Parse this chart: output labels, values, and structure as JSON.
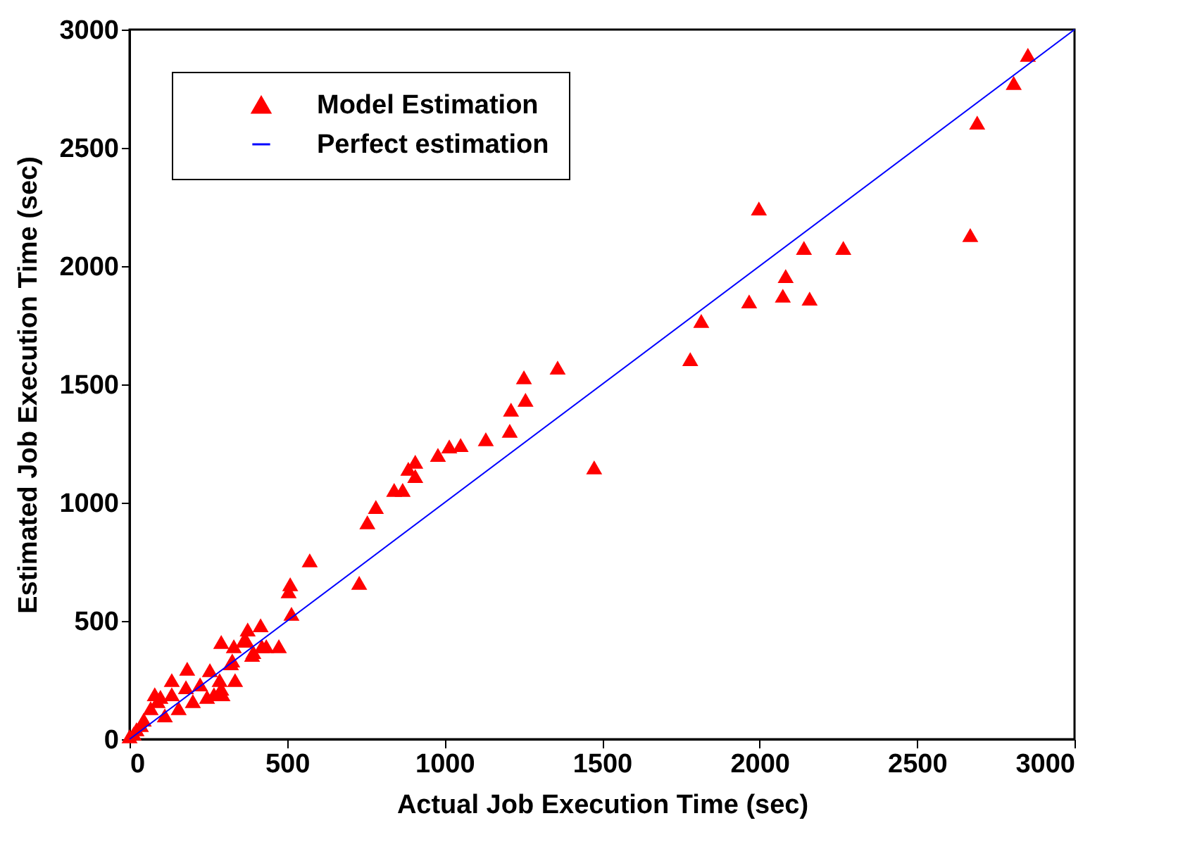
{
  "chart_data": {
    "type": "scatter",
    "xlabel": "Actual Job Execution Time (sec)",
    "ylabel": "Estimated Job Execution Time (sec)",
    "xlim": [
      0,
      3000
    ],
    "ylim": [
      0,
      3000
    ],
    "xticks": [
      0,
      500,
      1000,
      1500,
      2000,
      2500,
      3000
    ],
    "yticks": [
      0,
      500,
      1000,
      1500,
      2000,
      2500,
      3000
    ],
    "grid": false,
    "legend": "top left",
    "series": [
      {
        "name": "Model Estimation",
        "marker": "triangle",
        "color": "#ff0000",
        "x": [
          2852,
          2807,
          2691,
          2669,
          1998,
          2266,
          2141,
          2083,
          2074,
          1967,
          2159,
          1815,
          1780,
          1359,
          1252,
          1257,
          1211,
          1207,
          1131,
          1051,
          1015,
          979,
          907,
          885,
          907,
          867,
          840,
          782,
          755,
          729,
          1475,
          572,
          505,
          510,
          514,
          474,
          420,
          393,
          416,
          375,
          362,
          331,
          286,
          326,
          291,
          183,
          255,
          291,
          295,
          322,
          335,
          389,
          434,
          371,
          134,
          179,
          89,
          112,
          156,
          201,
          246,
          45,
          22,
          67,
          98,
          0,
          13,
          36,
          224,
          268,
          134,
          80
        ],
        "values": [
          2893,
          2774,
          2607,
          2131,
          2244,
          2077,
          2077,
          1958,
          1875,
          1851,
          1863,
          1768,
          1607,
          1571,
          1530,
          1435,
          1393,
          1304,
          1268,
          1244,
          1238,
          1202,
          1173,
          1143,
          1113,
          1054,
          1054,
          982,
          917,
          661,
          1149,
          756,
          625,
          655,
          530,
          393,
          393,
          369,
          482,
          464,
          417,
          393,
          250,
          333,
          411,
          298,
          292,
          214,
          190,
          321,
          250,
          357,
          393,
          417,
          190,
          220,
          161,
          101,
          131,
          161,
          179,
          83,
          42,
          131,
          179,
          12,
          24,
          60,
          232,
          190,
          250,
          190
        ]
      },
      {
        "name": "Perfect estimation",
        "type": "line",
        "color": "#0000ff",
        "x": [
          0,
          3000
        ],
        "values": [
          0,
          3000
        ]
      }
    ]
  }
}
